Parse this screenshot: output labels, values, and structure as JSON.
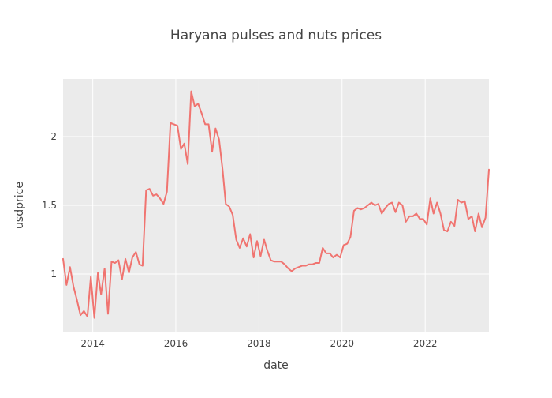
{
  "chart_data": {
    "type": "line",
    "title": "Haryana pulses and nuts prices",
    "xlabel": "date",
    "ylabel": "usdprice",
    "xlim": [
      "2013-04-15",
      "2023-07-15"
    ],
    "ylim": [
      0.58,
      2.42
    ],
    "grid": true,
    "legend": "none",
    "x_ticks": [
      {
        "label": "2014",
        "value": "2014-01-01"
      },
      {
        "label": "2016",
        "value": "2016-01-01"
      },
      {
        "label": "2018",
        "value": "2018-01-01"
      },
      {
        "label": "2020",
        "value": "2020-01-01"
      },
      {
        "label": "2022",
        "value": "2022-01-01"
      }
    ],
    "y_ticks": [
      {
        "label": "1",
        "value": 1
      },
      {
        "label": "1.5",
        "value": 1.5
      },
      {
        "label": "2",
        "value": 2
      }
    ],
    "colors": {
      "line": "#f07470",
      "plot_background": "#ebebeb",
      "grid": "#ffffff",
      "text": "#444444"
    },
    "series": [
      {
        "x": [
          "2013-04-15",
          "2013-05-15",
          "2013-06-15",
          "2013-07-15",
          "2013-08-15",
          "2013-09-15",
          "2013-10-15",
          "2013-11-15",
          "2013-12-15",
          "2014-01-15",
          "2014-02-15",
          "2014-03-15",
          "2014-04-15",
          "2014-05-15",
          "2014-06-15",
          "2014-07-15",
          "2014-08-15",
          "2014-09-15",
          "2014-10-15",
          "2014-11-15",
          "2014-12-15",
          "2015-01-15",
          "2015-02-15",
          "2015-03-15",
          "2015-04-15",
          "2015-05-15",
          "2015-06-15",
          "2015-07-15",
          "2015-08-15",
          "2015-09-15",
          "2015-10-15",
          "2015-11-15",
          "2015-12-15",
          "2016-01-15",
          "2016-02-15",
          "2016-03-15",
          "2016-04-15",
          "2016-05-15",
          "2016-06-15",
          "2016-07-15",
          "2016-08-15",
          "2016-09-15",
          "2016-10-15",
          "2016-11-15",
          "2016-12-15",
          "2017-01-15",
          "2017-02-15",
          "2017-03-15",
          "2017-04-15",
          "2017-05-15",
          "2017-06-15",
          "2017-07-15",
          "2017-08-15",
          "2017-09-15",
          "2017-10-15",
          "2017-11-15",
          "2017-12-15",
          "2018-01-15",
          "2018-02-15",
          "2018-03-15",
          "2018-04-15",
          "2018-05-15",
          "2018-06-15",
          "2018-07-15",
          "2018-08-15",
          "2018-09-15",
          "2018-10-15",
          "2018-11-15",
          "2018-12-15",
          "2019-01-15",
          "2019-02-15",
          "2019-03-15",
          "2019-04-15",
          "2019-05-15",
          "2019-06-15",
          "2019-07-15",
          "2019-08-15",
          "2019-09-15",
          "2019-10-15",
          "2019-11-15",
          "2019-12-15",
          "2020-01-15",
          "2020-02-15",
          "2020-03-15",
          "2020-04-15",
          "2020-05-15",
          "2020-06-15",
          "2020-07-15",
          "2020-08-15",
          "2020-09-15",
          "2020-10-15",
          "2020-11-15",
          "2020-12-15",
          "2021-01-15",
          "2021-02-15",
          "2021-03-15",
          "2021-04-15",
          "2021-05-15",
          "2021-06-15",
          "2021-07-15",
          "2021-08-15",
          "2021-09-15",
          "2021-10-15",
          "2021-11-15",
          "2021-12-15",
          "2022-01-15",
          "2022-02-15",
          "2022-03-15",
          "2022-04-15",
          "2022-05-15",
          "2022-06-15",
          "2022-07-15",
          "2022-08-15",
          "2022-09-15",
          "2022-10-15",
          "2022-11-15",
          "2022-12-15",
          "2023-01-15",
          "2023-02-15",
          "2023-03-15",
          "2023-04-15",
          "2023-05-15",
          "2023-06-15",
          "2023-07-15"
        ],
        "y": [
          1.11,
          0.92,
          1.05,
          0.91,
          0.81,
          0.7,
          0.73,
          0.69,
          0.98,
          0.68,
          1.01,
          0.85,
          1.04,
          0.71,
          1.09,
          1.08,
          1.1,
          0.96,
          1.11,
          1.01,
          1.12,
          1.16,
          1.07,
          1.06,
          1.61,
          1.62,
          1.57,
          1.58,
          1.55,
          1.51,
          1.6,
          2.1,
          2.09,
          2.08,
          1.91,
          1.95,
          1.8,
          2.33,
          2.22,
          2.24,
          2.17,
          2.09,
          2.09,
          1.89,
          2.06,
          1.98,
          1.76,
          1.51,
          1.49,
          1.43,
          1.25,
          1.19,
          1.26,
          1.2,
          1.29,
          1.12,
          1.24,
          1.13,
          1.25,
          1.17,
          1.1,
          1.09,
          1.09,
          1.09,
          1.07,
          1.04,
          1.02,
          1.04,
          1.05,
          1.06,
          1.06,
          1.07,
          1.07,
          1.08,
          1.08,
          1.19,
          1.15,
          1.15,
          1.12,
          1.14,
          1.12,
          1.21,
          1.22,
          1.27,
          1.46,
          1.48,
          1.47,
          1.48,
          1.5,
          1.52,
          1.5,
          1.51,
          1.44,
          1.48,
          1.51,
          1.52,
          1.45,
          1.52,
          1.5,
          1.38,
          1.42,
          1.42,
          1.44,
          1.4,
          1.4,
          1.36,
          1.55,
          1.44,
          1.52,
          1.44,
          1.32,
          1.31,
          1.38,
          1.35,
          1.54,
          1.52,
          1.53,
          1.4,
          1.42,
          1.31,
          1.44,
          1.34,
          1.41,
          1.76
        ]
      }
    ]
  }
}
